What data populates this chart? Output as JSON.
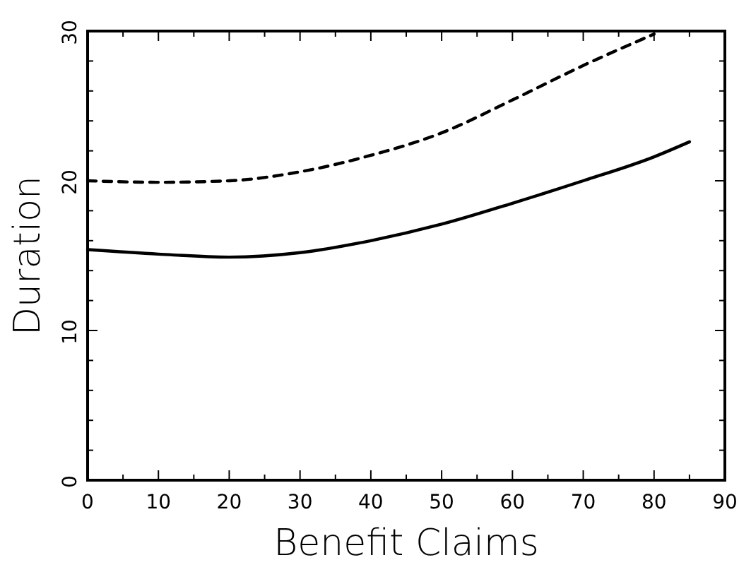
{
  "chart_data": {
    "type": "line",
    "xlabel": "Benefit Claims",
    "ylabel": "Duration",
    "xlim": [
      0,
      90
    ],
    "ylim": [
      0,
      30
    ],
    "xticks": [
      0,
      {
        "value": 5,
        "label": null
      },
      10,
      {
        "value": 15,
        "label": null
      },
      20,
      {
        "value": 25,
        "label": null
      },
      30,
      {
        "value": 35,
        "label": null
      },
      40,
      {
        "value": 45,
        "label": null
      },
      50,
      {
        "value": 55,
        "label": null
      },
      60,
      {
        "value": 65,
        "label": null
      },
      70,
      {
        "value": 75,
        "label": null
      },
      80,
      {
        "value": 85,
        "label": null
      },
      90
    ],
    "yticks": [
      0,
      {
        "value": 2,
        "label": null
      },
      {
        "value": 4,
        "label": null
      },
      {
        "value": 6,
        "label": null
      },
      {
        "value": 8,
        "label": null
      },
      10,
      {
        "value": 12,
        "label": null
      },
      {
        "value": 14,
        "label": null
      },
      {
        "value": 16,
        "label": null
      },
      {
        "value": 18,
        "label": null
      },
      20,
      {
        "value": 22,
        "label": null
      },
      {
        "value": 24,
        "label": null
      },
      {
        "value": 26,
        "label": null
      },
      {
        "value": 28,
        "label": null
      },
      30
    ],
    "grid": false,
    "marker": "none",
    "series": [
      {
        "color": "#000000",
        "line_style": "solid",
        "x": [
          0,
          10,
          20,
          30,
          40,
          50,
          60,
          70,
          80,
          85
        ],
        "values": [
          15.4,
          15.1,
          14.9,
          15.2,
          16.0,
          17.1,
          18.5,
          20.0,
          21.6,
          22.6
        ]
      },
      {
        "color": "#000000",
        "line_style": "dashed",
        "x": [
          0,
          10,
          20,
          30,
          40,
          50,
          60,
          70,
          80
        ],
        "values": [
          20.0,
          19.9,
          20.0,
          20.6,
          21.7,
          23.2,
          25.4,
          27.7,
          29.8
        ]
      }
    ]
  }
}
